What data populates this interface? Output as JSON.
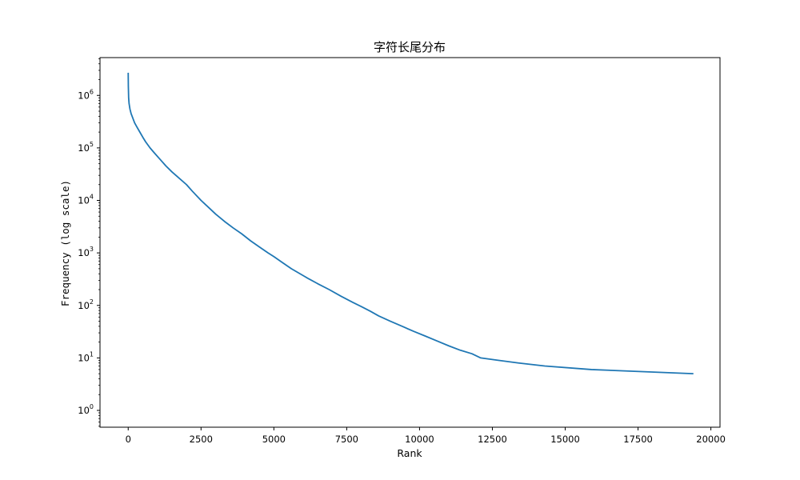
{
  "chart_data": {
    "type": "line",
    "title": "字符长尾分布",
    "xlabel": "Rank",
    "ylabel": "Frequency (log scale)",
    "xlim": [
      -968,
      20313
    ],
    "ylim_log10": [
      -0.32,
      6.72
    ],
    "y_scale": "log",
    "x_ticks": [
      0,
      2500,
      5000,
      7500,
      10000,
      12500,
      15000,
      17500,
      20000
    ],
    "y_ticks": [
      {
        "value": 1,
        "base": "10",
        "exp": "0"
      },
      {
        "value": 10,
        "base": "10",
        "exp": "1"
      },
      {
        "value": 100,
        "base": "10",
        "exp": "2"
      },
      {
        "value": 1000,
        "base": "10",
        "exp": "3"
      },
      {
        "value": 10000,
        "base": "10",
        "exp": "4"
      },
      {
        "value": 100000,
        "base": "10",
        "exp": "5"
      },
      {
        "value": 1000000,
        "base": "10",
        "exp": "6"
      }
    ],
    "grid": false,
    "series": [
      {
        "color": "#1f77b4",
        "points": [
          [
            0,
            2700000
          ],
          [
            5,
            1500000
          ],
          [
            15,
            900000
          ],
          [
            30,
            700000
          ],
          [
            60,
            550000
          ],
          [
            100,
            450000
          ],
          [
            150,
            380000
          ],
          [
            220,
            300000
          ],
          [
            300,
            250000
          ],
          [
            400,
            200000
          ],
          [
            500,
            160000
          ],
          [
            600,
            130000
          ],
          [
            750,
            100000
          ],
          [
            900,
            80000
          ],
          [
            1100,
            60000
          ],
          [
            1300,
            45000
          ],
          [
            1500,
            35000
          ],
          [
            1700,
            28000
          ],
          [
            2000,
            20000
          ],
          [
            2200,
            15000
          ],
          [
            2500,
            10000
          ],
          [
            2800,
            7000
          ],
          [
            3000,
            5500
          ],
          [
            3300,
            4000
          ],
          [
            3600,
            3000
          ],
          [
            3900,
            2300
          ],
          [
            4200,
            1700
          ],
          [
            4500,
            1300
          ],
          [
            4800,
            1000
          ],
          [
            5000,
            850
          ],
          [
            5300,
            650
          ],
          [
            5600,
            500
          ],
          [
            5900,
            400
          ],
          [
            6200,
            320
          ],
          [
            6500,
            260
          ],
          [
            6900,
            200
          ],
          [
            7300,
            150
          ],
          [
            7700,
            115
          ],
          [
            8000,
            95
          ],
          [
            8300,
            78
          ],
          [
            8600,
            63
          ],
          [
            9000,
            50
          ],
          [
            9400,
            40
          ],
          [
            9800,
            32
          ],
          [
            10200,
            26
          ],
          [
            10600,
            21
          ],
          [
            11000,
            17
          ],
          [
            11400,
            14
          ],
          [
            11800,
            12
          ],
          [
            12100,
            10
          ],
          [
            12700,
            9
          ],
          [
            13400,
            8
          ],
          [
            14300,
            7
          ],
          [
            15900,
            6
          ],
          [
            19400,
            5
          ]
        ],
        "steps": [
          [
            9200,
            10900,
            0,
            0
          ],
          [
            10900,
            11300,
            0,
            0
          ]
        ]
      }
    ]
  }
}
